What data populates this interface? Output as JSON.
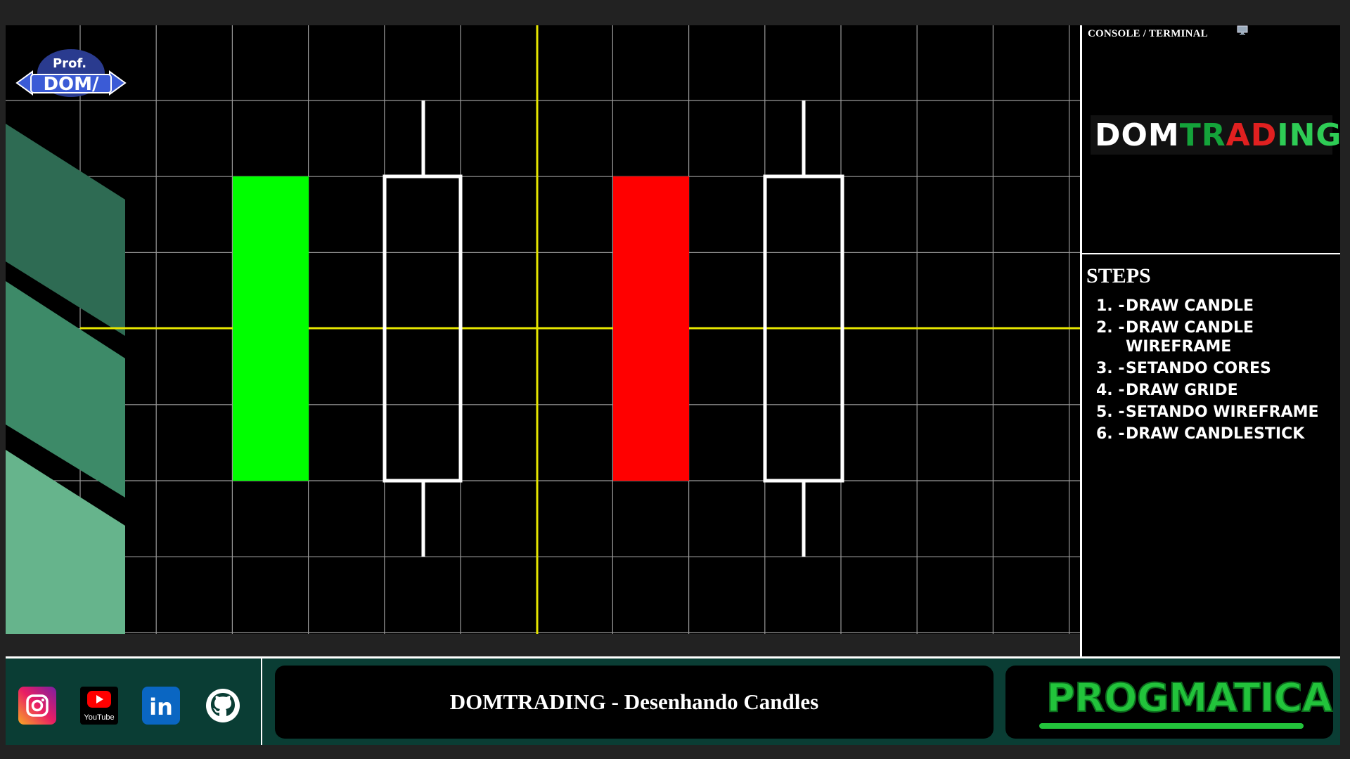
{
  "console": {
    "title": "CONSOLE / TERMINAL",
    "logo": {
      "part1": "DOM",
      "part2": "TRADING"
    },
    "steps_title": "STEPS",
    "steps": [
      {
        "num": "1. -",
        "text": "DRAW CANDLE"
      },
      {
        "num": "2. -",
        "text": "DRAW CANDLE WIREFRAME"
      },
      {
        "num": "3. -",
        "text": "SETANDO CORES"
      },
      {
        "num": "4. -",
        "text": "DRAW GRIDE"
      },
      {
        "num": "5. -",
        "text": "SETANDO WIREFRAME"
      },
      {
        "num": "6. -",
        "text": "DRAW CANDLESTICK"
      }
    ]
  },
  "canvas": {
    "prof_logo": {
      "line1": "Prof.",
      "line2": "DOM/"
    },
    "colors": {
      "grid": "#9a9a9a",
      "axis": "#e6e600",
      "bull": "#00ff00",
      "bear": "#ff0000",
      "wire": "#ffffff",
      "stripe1": "#2e6b53",
      "stripe2": "#3d8a68",
      "stripe3": "#66b48c"
    }
  },
  "footer": {
    "title": "DOMTRADING - Desenhando Candles",
    "social": [
      {
        "icon": "instagram-icon"
      },
      {
        "icon": "youtube-icon",
        "label": "YouTube"
      },
      {
        "icon": "linkedin-icon",
        "label": "in"
      },
      {
        "icon": "github-icon"
      }
    ],
    "brand": "PROGMATICA"
  }
}
